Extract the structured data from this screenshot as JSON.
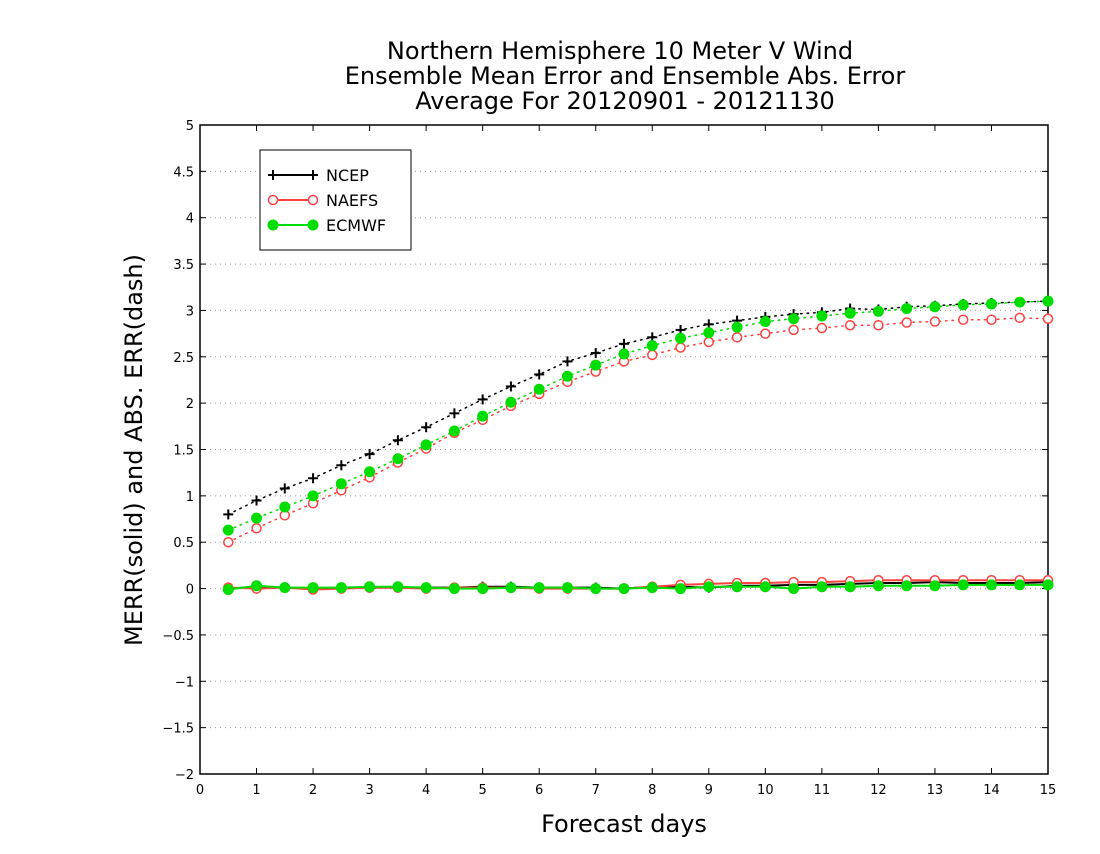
{
  "chart_data": {
    "type": "line",
    "title": [
      "Northern Hemisphere 10 Meter V Wind",
      "Ensemble Mean Error and Ensemble Abs. Error",
      "Average For 20120901 - 20121130"
    ],
    "xlabel": "Forecast days",
    "ylabel": "MERR(solid) and ABS. ERR(dash)",
    "xlim": [
      0,
      15
    ],
    "ylim": [
      -2,
      5
    ],
    "xticks": [
      "0",
      "1",
      "2",
      "3",
      "4",
      "5",
      "6",
      "7",
      "8",
      "9",
      "10",
      "11",
      "12",
      "13",
      "14",
      "15"
    ],
    "yticks": [
      "−2",
      "−1.5",
      "−1",
      "−0.5",
      "0",
      "0.5",
      "1",
      "1.5",
      "2",
      "2.5",
      "3",
      "3.5",
      "4",
      "4.5",
      "5"
    ],
    "ytick_values": [
      -2,
      -1.5,
      -1,
      -0.5,
      0,
      0.5,
      1,
      1.5,
      2,
      2.5,
      3,
      3.5,
      4,
      4.5,
      5
    ],
    "grid": "horizontal dotted",
    "legend_position": "top-left",
    "x": [
      0.5,
      1,
      1.5,
      2,
      2.5,
      3,
      3.5,
      4,
      4.5,
      5,
      5.5,
      6,
      6.5,
      7,
      7.5,
      8,
      8.5,
      9,
      9.5,
      10,
      10.5,
      11,
      11.5,
      12,
      12.5,
      13,
      13.5,
      14,
      14.5,
      15
    ],
    "series": [
      {
        "name": "NCEP",
        "color": "#000000",
        "marker": "plus",
        "merr": [
          0.0,
          0.02,
          0.01,
          0.0,
          0.01,
          0.01,
          0.01,
          0.01,
          0.01,
          0.02,
          0.02,
          0.01,
          0.01,
          0.01,
          0.0,
          0.02,
          0.02,
          0.01,
          0.03,
          0.03,
          0.04,
          0.04,
          0.05,
          0.06,
          0.06,
          0.07,
          0.06,
          0.06,
          0.06,
          0.07
        ],
        "abs_err": [
          0.8,
          0.95,
          1.08,
          1.19,
          1.33,
          1.45,
          1.6,
          1.74,
          1.89,
          2.04,
          2.18,
          2.31,
          2.45,
          2.54,
          2.64,
          2.71,
          2.79,
          2.85,
          2.89,
          2.93,
          2.96,
          2.98,
          3.02,
          3.01,
          3.04,
          3.05,
          3.07,
          3.08,
          3.09,
          3.1
        ]
      },
      {
        "name": "NAEFS",
        "color": "#ff4040",
        "marker": "open-circle",
        "merr": [
          0.01,
          0.0,
          0.01,
          -0.01,
          0.0,
          0.01,
          0.01,
          0.0,
          0.01,
          0.01,
          0.01,
          0.0,
          0.0,
          0.0,
          0.0,
          0.02,
          0.04,
          0.05,
          0.06,
          0.06,
          0.07,
          0.07,
          0.08,
          0.09,
          0.09,
          0.09,
          0.09,
          0.09,
          0.09,
          0.09
        ],
        "abs_err": [
          0.5,
          0.65,
          0.79,
          0.92,
          1.06,
          1.2,
          1.36,
          1.51,
          1.68,
          1.82,
          1.97,
          2.1,
          2.23,
          2.34,
          2.45,
          2.52,
          2.6,
          2.66,
          2.71,
          2.75,
          2.79,
          2.81,
          2.84,
          2.84,
          2.87,
          2.88,
          2.9,
          2.9,
          2.92,
          2.91
        ]
      },
      {
        "name": "ECMWF",
        "color": "#00dd00",
        "marker": "filled-circle",
        "merr": [
          -0.01,
          0.03,
          0.01,
          0.01,
          0.01,
          0.02,
          0.02,
          0.01,
          0.0,
          0.0,
          0.01,
          0.01,
          0.01,
          0.0,
          0.0,
          0.01,
          0.0,
          0.02,
          0.02,
          0.02,
          0.0,
          0.02,
          0.02,
          0.03,
          0.03,
          0.03,
          0.04,
          0.04,
          0.04,
          0.04
        ],
        "abs_err": [
          0.63,
          0.76,
          0.88,
          1.0,
          1.13,
          1.26,
          1.4,
          1.55,
          1.7,
          1.86,
          2.01,
          2.15,
          2.29,
          2.41,
          2.53,
          2.62,
          2.7,
          2.76,
          2.82,
          2.88,
          2.91,
          2.94,
          2.97,
          2.99,
          3.02,
          3.04,
          3.06,
          3.07,
          3.09,
          3.1
        ]
      }
    ]
  }
}
